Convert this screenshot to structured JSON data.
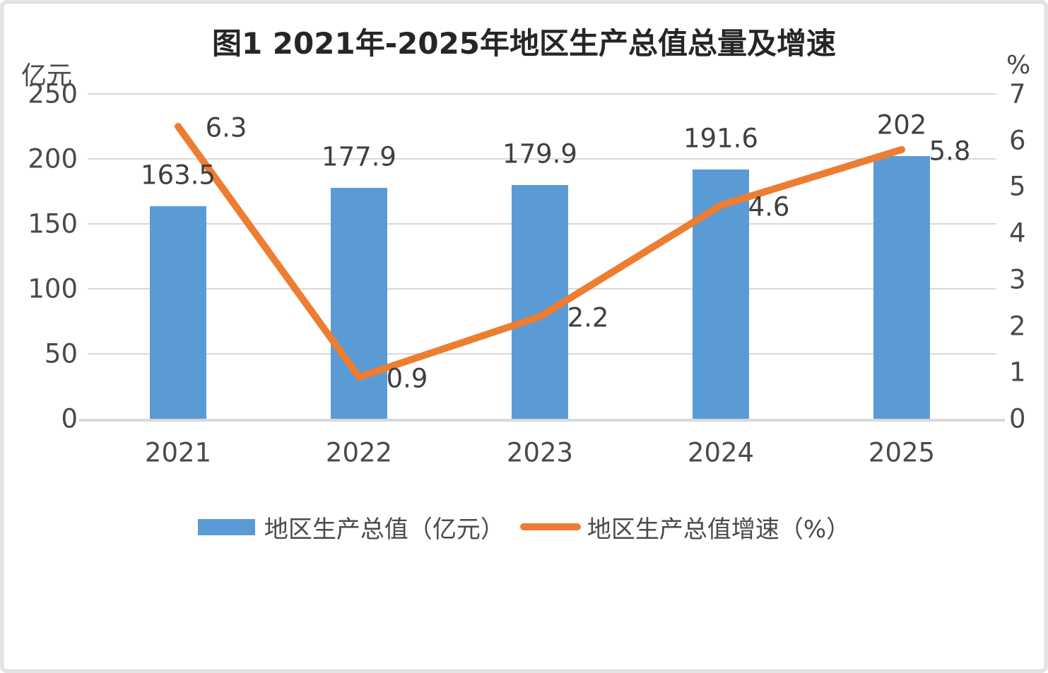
{
  "title": "图1 2021年-2025年地区生产总值总量及增速",
  "chart_data": {
    "type": "bar+line",
    "title": "图1 2021年-2025年地区生产总值总量及增速",
    "categories": [
      "2021",
      "2022",
      "2023",
      "2024",
      "2025"
    ],
    "series": [
      {
        "name": "地区生产总值（亿元）",
        "type": "bar",
        "yaxis": "left",
        "color": "#5B9BD5",
        "values": [
          163.5,
          177.9,
          179.9,
          191.6,
          202
        ]
      },
      {
        "name": "地区生产总值增速（%）",
        "type": "line",
        "yaxis": "right",
        "color": "#ED7D31",
        "values": [
          6.3,
          0.9,
          2.2,
          4.6,
          5.8
        ]
      }
    ],
    "left_axis": {
      "unit": "亿元",
      "ticks": [
        250,
        200,
        150,
        100,
        50,
        0
      ],
      "range": [
        0,
        250
      ]
    },
    "right_axis": {
      "unit": "%",
      "ticks": [
        7,
        6,
        5,
        4,
        3,
        2,
        1,
        0
      ],
      "range": [
        0,
        7
      ]
    },
    "grid": true,
    "data_labels": true,
    "legend_position": "bottom"
  },
  "colors": {
    "bar": "#5B9BD5",
    "line": "#ED7D31",
    "grid": "#d9d9d9",
    "axis": "#d9d9d9",
    "tick_text": "#4a4a4a",
    "label_text": "#3f3f3f",
    "title_text": "#262626"
  }
}
